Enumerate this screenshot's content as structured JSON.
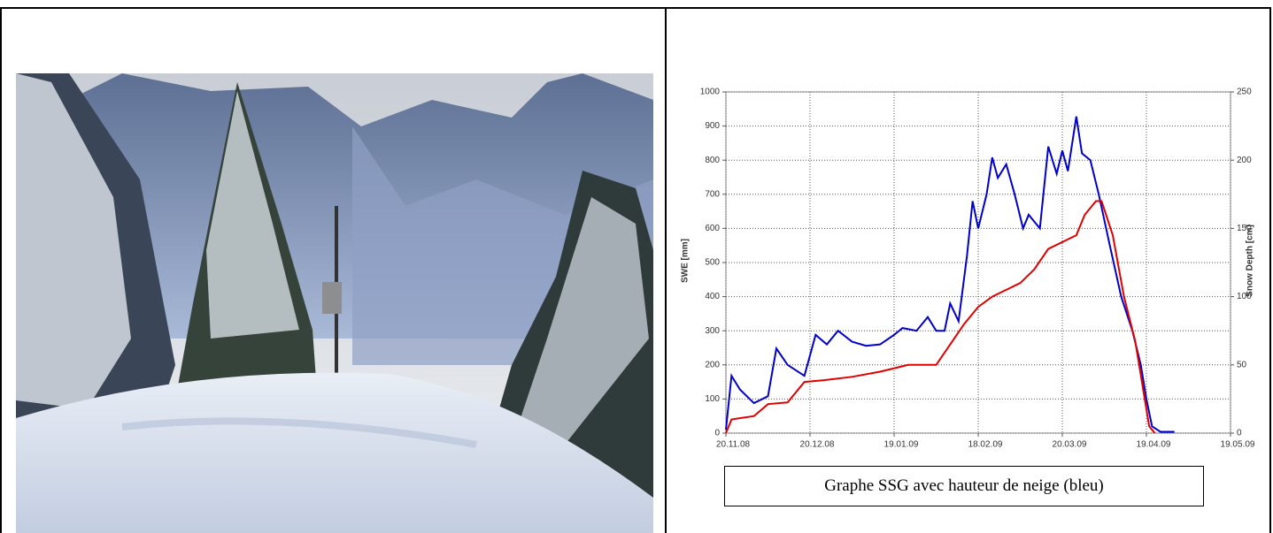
{
  "chart_data": {
    "type": "line",
    "y_label": "SWE [mm]",
    "y2_label": "Snow Depth [cm]",
    "xlim": [
      0,
      180
    ],
    "xticks": [
      {
        "value": 0,
        "label": "20.11.08"
      },
      {
        "value": 30,
        "label": "20.12.08"
      },
      {
        "value": 60,
        "label": "19.01.09"
      },
      {
        "value": 90,
        "label": "18.02.09"
      },
      {
        "value": 120,
        "label": "20.03.09"
      },
      {
        "value": 150,
        "label": "19.04.09"
      },
      {
        "value": 180,
        "label": "19.05.09"
      }
    ],
    "ylim": [
      0,
      1000
    ],
    "yticks": [
      0,
      100,
      200,
      300,
      400,
      500,
      600,
      700,
      800,
      900,
      1000
    ],
    "y2lim": [
      0,
      250
    ],
    "y2ticks": [
      0,
      50,
      100,
      150,
      200,
      250
    ],
    "grid": true,
    "series": [
      {
        "color": "#0000cc",
        "axis": "y2",
        "x": [
          0,
          2,
          5,
          10,
          15,
          18,
          22,
          28,
          32,
          36,
          40,
          45,
          50,
          55,
          60,
          63,
          68,
          72,
          75,
          78,
          80,
          83,
          86,
          88,
          90,
          93,
          95,
          97,
          100,
          103,
          106,
          108,
          112,
          115,
          118,
          120,
          122,
          125,
          127,
          130,
          133,
          137,
          141,
          145,
          148,
          150,
          152,
          155,
          160
        ],
        "values": [
          2.5,
          42,
          32,
          22,
          27,
          62,
          50,
          42,
          72,
          65,
          75,
          67,
          64,
          65,
          72,
          77,
          75,
          85,
          75,
          75,
          95,
          82,
          130,
          170,
          150,
          175,
          202,
          187,
          197,
          175,
          150,
          160,
          150,
          210,
          190,
          207,
          192,
          232,
          205,
          200,
          175,
          137,
          100,
          75,
          50,
          25,
          5,
          1,
          1
        ]
      },
      {
        "color": "#e00000",
        "x": [
          0,
          2,
          10,
          15,
          22,
          28,
          35,
          45,
          55,
          65,
          75,
          80,
          85,
          90,
          95,
          100,
          105,
          110,
          115,
          120,
          125,
          128,
          132,
          134,
          138,
          142,
          146,
          149,
          151,
          153
        ],
        "values": [
          0,
          40,
          50,
          85,
          90,
          150,
          155,
          165,
          180,
          200,
          200,
          260,
          320,
          370,
          400,
          420,
          440,
          480,
          540,
          560,
          580,
          640,
          680,
          680,
          580,
          400,
          270,
          120,
          20,
          0
        ]
      }
    ]
  },
  "caption": "Graphe SSG avec hauteur de neige (bleu)"
}
